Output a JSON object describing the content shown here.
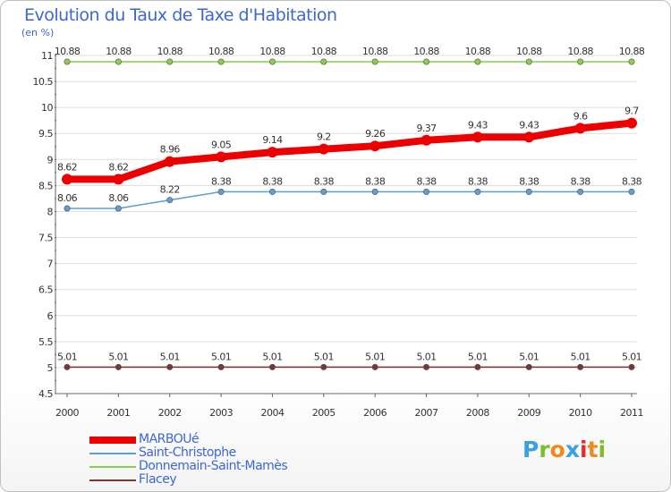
{
  "header": {
    "title": "Evolution du Taux de Taxe d'Habitation",
    "unit": "(en %)"
  },
  "logo": {
    "text": "Proxiti",
    "colors": [
      "#3aa0e0",
      "#7bbf2a",
      "#f08a1c",
      "#3aa0e0",
      "#e0302a",
      "#f08a1c",
      "#7bbf2a"
    ]
  },
  "chart_data": {
    "type": "line",
    "title": "Evolution du Taux de Taxe d'Habitation",
    "ylabel": "(en %)",
    "xlabel": "",
    "ylim": [
      4.5,
      11
    ],
    "yticks": [
      4.5,
      5,
      5.5,
      6,
      6.5,
      7,
      7.5,
      8,
      8.5,
      9,
      9.5,
      10,
      10.5,
      11
    ],
    "ytick_labels": [
      "4.5",
      "5",
      "5.5",
      "6",
      "6.5",
      "7",
      "7.5",
      "8",
      "8.5",
      "9",
      "9.5",
      "10",
      "10.5",
      "11"
    ],
    "x": [
      "2000",
      "2001",
      "2002",
      "2003",
      "2004",
      "2005",
      "2006",
      "2007",
      "2008",
      "2009",
      "2010",
      "2011"
    ],
    "grid": "horizontal",
    "legend_position": "bottom-left",
    "series": [
      {
        "name": "MARBOUé",
        "color": "#ee0000",
        "emphasis": "thick",
        "values": [
          8.62,
          8.62,
          8.96,
          9.05,
          9.14,
          9.2,
          9.26,
          9.37,
          9.43,
          9.43,
          9.6,
          9.7
        ],
        "labels": [
          "8.62",
          "8.62",
          "8.96",
          "9.05",
          "9.14",
          "9.2",
          "9.26",
          "9.37",
          "9.43",
          "9.43",
          "9.6",
          "9.7"
        ]
      },
      {
        "name": "Saint-Christophe",
        "color": "#5b9fd3",
        "emphasis": "thin",
        "values": [
          8.06,
          8.06,
          8.22,
          8.38,
          8.38,
          8.38,
          8.38,
          8.38,
          8.38,
          8.38,
          8.38,
          8.38
        ],
        "labels": [
          "8.06",
          "8.06",
          "8.22",
          "8.38",
          "8.38",
          "8.38",
          "8.38",
          "8.38",
          "8.38",
          "8.38",
          "8.38",
          "8.38"
        ]
      },
      {
        "name": "Donnemain-Saint-Mamès",
        "color": "#8ccc4e",
        "emphasis": "thin",
        "values": [
          10.88,
          10.88,
          10.88,
          10.88,
          10.88,
          10.88,
          10.88,
          10.88,
          10.88,
          10.88,
          10.88,
          10.88
        ],
        "labels": [
          "10.88",
          "10.88",
          "10.88",
          "10.88",
          "10.88",
          "10.88",
          "10.88",
          "10.88",
          "10.88",
          "10.88",
          "10.88",
          "10.88"
        ]
      },
      {
        "name": "Flacey",
        "color": "#7a3535",
        "emphasis": "thin",
        "values": [
          5.01,
          5.01,
          5.01,
          5.01,
          5.01,
          5.01,
          5.01,
          5.01,
          5.01,
          5.01,
          5.01,
          5.01
        ],
        "labels": [
          "5.01",
          "5.01",
          "5.01",
          "5.01",
          "5.01",
          "5.01",
          "5.01",
          "5.01",
          "5.01",
          "5.01",
          "5.01",
          "5.01"
        ]
      }
    ]
  }
}
